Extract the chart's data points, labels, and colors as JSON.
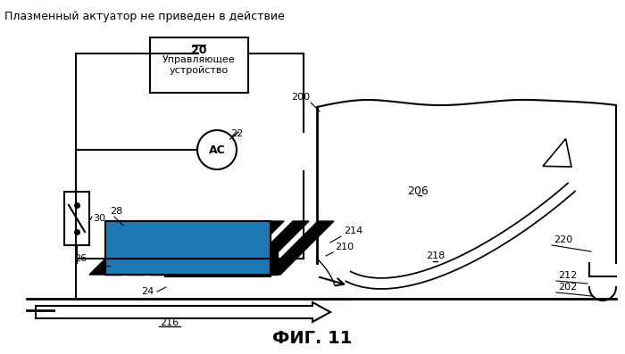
{
  "title": "Плазменный актуатор не приведен в действие",
  "fig_label": "ФИГ. 11",
  "bg_color": "#ffffff",
  "line_color": "#000000",
  "labels": {
    "20": [
      205,
      68,
      "Управляющее\nустройство\n20"
    ],
    "22": [
      268,
      158,
      "22"
    ],
    "AC": [
      240,
      168,
      "АС"
    ],
    "30": [
      108,
      218,
      "30"
    ],
    "28": [
      183,
      228,
      "28"
    ],
    "26": [
      88,
      268,
      "26"
    ],
    "24": [
      158,
      298,
      "24"
    ],
    "200": [
      355,
      118,
      "200"
    ],
    "206": [
      470,
      218,
      "206"
    ],
    "214": [
      383,
      268,
      "214"
    ],
    "210": [
      375,
      288,
      "210"
    ],
    "216": [
      218,
      318,
      "216"
    ],
    "218": [
      490,
      298,
      "218"
    ],
    "220": [
      618,
      278,
      "220"
    ],
    "212": [
      628,
      318,
      "212"
    ],
    "202": [
      635,
      328,
      "202"
    ]
  }
}
